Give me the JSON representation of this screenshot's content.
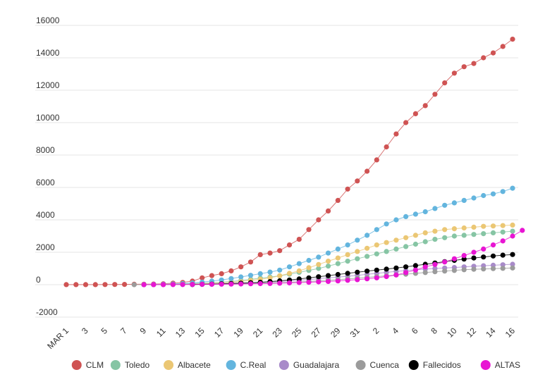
{
  "chart_data": {
    "type": "line",
    "title": "",
    "xlabel": "",
    "ylabel": "",
    "ylim": [
      -2000,
      16000
    ],
    "y_ticks": [
      {
        "value": 16000,
        "label": "16000"
      },
      {
        "value": 14000,
        "label": "14000"
      },
      {
        "value": 12000,
        "label": "12000"
      },
      {
        "value": 10000,
        "label": "10000"
      },
      {
        "value": 8000,
        "label": "8000"
      },
      {
        "value": 6000,
        "label": "6000"
      },
      {
        "value": 4000,
        "label": "4000"
      },
      {
        "value": 2000,
        "label": "2000"
      },
      {
        "value": 0,
        "label": "0"
      },
      {
        "value": -2000,
        "label": "-2000"
      }
    ],
    "x_ticks": [
      {
        "index": 0,
        "label": "MAR 1"
      },
      {
        "index": 2,
        "label": "3"
      },
      {
        "index": 4,
        "label": "5"
      },
      {
        "index": 6,
        "label": "7"
      },
      {
        "index": 8,
        "label": "9"
      },
      {
        "index": 10,
        "label": "11"
      },
      {
        "index": 12,
        "label": "13"
      },
      {
        "index": 14,
        "label": "15"
      },
      {
        "index": 16,
        "label": "17"
      },
      {
        "index": 18,
        "label": "19"
      },
      {
        "index": 20,
        "label": "21"
      },
      {
        "index": 22,
        "label": "23"
      },
      {
        "index": 24,
        "label": "25"
      },
      {
        "index": 26,
        "label": "27"
      },
      {
        "index": 28,
        "label": "29"
      },
      {
        "index": 30,
        "label": "31"
      },
      {
        "index": 32,
        "label": "2"
      },
      {
        "index": 34,
        "label": "4"
      },
      {
        "index": 36,
        "label": "6"
      },
      {
        "index": 38,
        "label": "8"
      },
      {
        "index": 40,
        "label": "10"
      },
      {
        "index": 42,
        "label": "12"
      },
      {
        "index": 44,
        "label": "14"
      },
      {
        "index": 46,
        "label": "16"
      }
    ],
    "series": [
      {
        "name": "CLM",
        "color": "#cf5353",
        "start": 0,
        "values": [
          3,
          3,
          3,
          5,
          8,
          12,
          18,
          26,
          30,
          40,
          55,
          95,
          140,
          220,
          420,
          560,
          680,
          850,
          1100,
          1400,
          1850,
          1950,
          2100,
          2450,
          2800,
          3400,
          4000,
          4550,
          5200,
          5900,
          6400,
          7000,
          7700,
          8500,
          9300,
          10000,
          10550,
          11050,
          11750,
          12450,
          13050,
          13450,
          13650,
          14000,
          14300,
          14700,
          15150
        ]
      },
      {
        "name": "Toledo",
        "color": "#86c5a4",
        "start": 8,
        "values": [
          5,
          10,
          18,
          30,
          45,
          65,
          90,
          120,
          150,
          200,
          260,
          330,
          400,
          470,
          550,
          650,
          760,
          880,
          1000,
          1150,
          1300,
          1450,
          1600,
          1750,
          1900,
          2050,
          2200,
          2350,
          2500,
          2650,
          2800,
          2900,
          3000,
          3050,
          3100,
          3150,
          3200,
          3250,
          3300
        ]
      },
      {
        "name": "Albacete",
        "color": "#ebc774",
        "start": 8,
        "values": [
          3,
          6,
          10,
          18,
          28,
          40,
          60,
          85,
          110,
          150,
          200,
          260,
          330,
          420,
          550,
          700,
          850,
          1050,
          1250,
          1450,
          1650,
          1850,
          2050,
          2250,
          2450,
          2600,
          2750,
          2900,
          3050,
          3200,
          3300,
          3400,
          3450,
          3500,
          3550,
          3600,
          3620,
          3650,
          3680
        ]
      },
      {
        "name": "C.Real",
        "color": "#63b5de",
        "start": 8,
        "values": [
          5,
          12,
          25,
          45,
          70,
          110,
          160,
          220,
          290,
          380,
          480,
          580,
          680,
          780,
          900,
          1100,
          1300,
          1500,
          1700,
          1950,
          2200,
          2450,
          2750,
          3050,
          3400,
          3750,
          4000,
          4200,
          4350,
          4500,
          4700,
          4900,
          5050,
          5200,
          5350,
          5500,
          5600,
          5750,
          5950
        ]
      },
      {
        "name": "Guadalajara",
        "color": "#a88bc9",
        "start": 8,
        "values": [
          2,
          4,
          8,
          12,
          18,
          25,
          35,
          45,
          60,
          80,
          100,
          120,
          145,
          170,
          200,
          240,
          280,
          320,
          370,
          420,
          470,
          520,
          580,
          640,
          700,
          760,
          820,
          870,
          920,
          960,
          1000,
          1030,
          1060,
          1100,
          1140,
          1170,
          1200,
          1230,
          1260
        ]
      },
      {
        "name": "Cuenca",
        "color": "#9b9b9b",
        "start": 7,
        "values": [
          2,
          3,
          5,
          8,
          12,
          18,
          25,
          32,
          40,
          50,
          60,
          70,
          80,
          95,
          110,
          130,
          150,
          175,
          200,
          230,
          270,
          310,
          350,
          400,
          450,
          500,
          550,
          600,
          650,
          700,
          750,
          800,
          840,
          880,
          920,
          950,
          970,
          990,
          1010,
          1030
        ]
      },
      {
        "name": "Fallecidos",
        "color": "#000000",
        "start": 13,
        "values": [
          10,
          20,
          35,
          55,
          75,
          95,
          120,
          150,
          190,
          240,
          290,
          350,
          420,
          490,
          560,
          630,
          700,
          770,
          840,
          900,
          960,
          1030,
          1100,
          1180,
          1260,
          1340,
          1420,
          1500,
          1580,
          1650,
          1710,
          1770,
          1820,
          1860
        ]
      },
      {
        "name": "ALTAS",
        "color": "#e815d3",
        "start": 8,
        "values": [
          2,
          3,
          5,
          8,
          10,
          15,
          20,
          25,
          30,
          35,
          45,
          55,
          65,
          75,
          90,
          110,
          130,
          150,
          175,
          200,
          230,
          270,
          310,
          360,
          420,
          500,
          600,
          750,
          900,
          1100,
          1250,
          1400,
          1600,
          1800,
          2000,
          2200,
          2450,
          2700,
          3000,
          3350
        ]
      }
    ],
    "legend_position": "bottom",
    "grid": true
  }
}
